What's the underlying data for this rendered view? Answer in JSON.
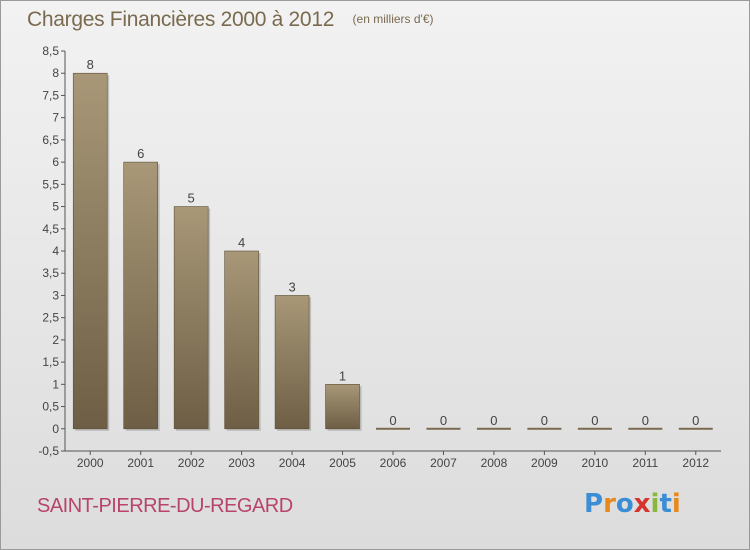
{
  "header": {
    "title": "Charges Financières 2000 à 2012",
    "subtitle": "(en milliers d'€)"
  },
  "footer": {
    "commune": "SAINT-PIERRE-DU-REGARD",
    "logo_text": "Proxiti",
    "logo_colors": [
      "#3b8ed6",
      "#e8891e",
      "#3b8ed6",
      "#d6342e",
      "#8ab83a",
      "#3b8ed6",
      "#e8891e"
    ]
  },
  "chart_data": {
    "type": "bar",
    "title": "Charges Financières 2000 à 2012",
    "subtitle": "(en milliers d'€)",
    "categories": [
      "2000",
      "2001",
      "2002",
      "2003",
      "2004",
      "2005",
      "2006",
      "2007",
      "2008",
      "2009",
      "2010",
      "2011",
      "2012"
    ],
    "values": [
      8,
      6,
      5,
      4,
      3,
      1,
      0,
      0,
      0,
      0,
      0,
      0,
      0
    ],
    "data_labels": [
      "8",
      "6",
      "5",
      "4",
      "3",
      "1",
      "0",
      "0",
      "0",
      "0",
      "0",
      "0",
      "0"
    ],
    "ylim": [
      -0.5,
      8.5
    ],
    "yticks": [
      "-0,5",
      "0",
      "0,5",
      "1",
      "1,5",
      "2",
      "2,5",
      "3",
      "3,5",
      "4",
      "4,5",
      "5",
      "5,5",
      "6",
      "6,5",
      "7",
      "7,5",
      "8",
      "8,5"
    ],
    "ytick_values": [
      -0.5,
      0,
      0.5,
      1,
      1.5,
      2,
      2.5,
      3,
      3.5,
      4,
      4.5,
      5,
      5.5,
      6,
      6.5,
      7,
      7.5,
      8,
      8.5
    ],
    "xlabel": "",
    "ylabel": "",
    "grid": false,
    "bar_color_top": "#a89878",
    "bar_color_bottom": "#6e5e45"
  }
}
